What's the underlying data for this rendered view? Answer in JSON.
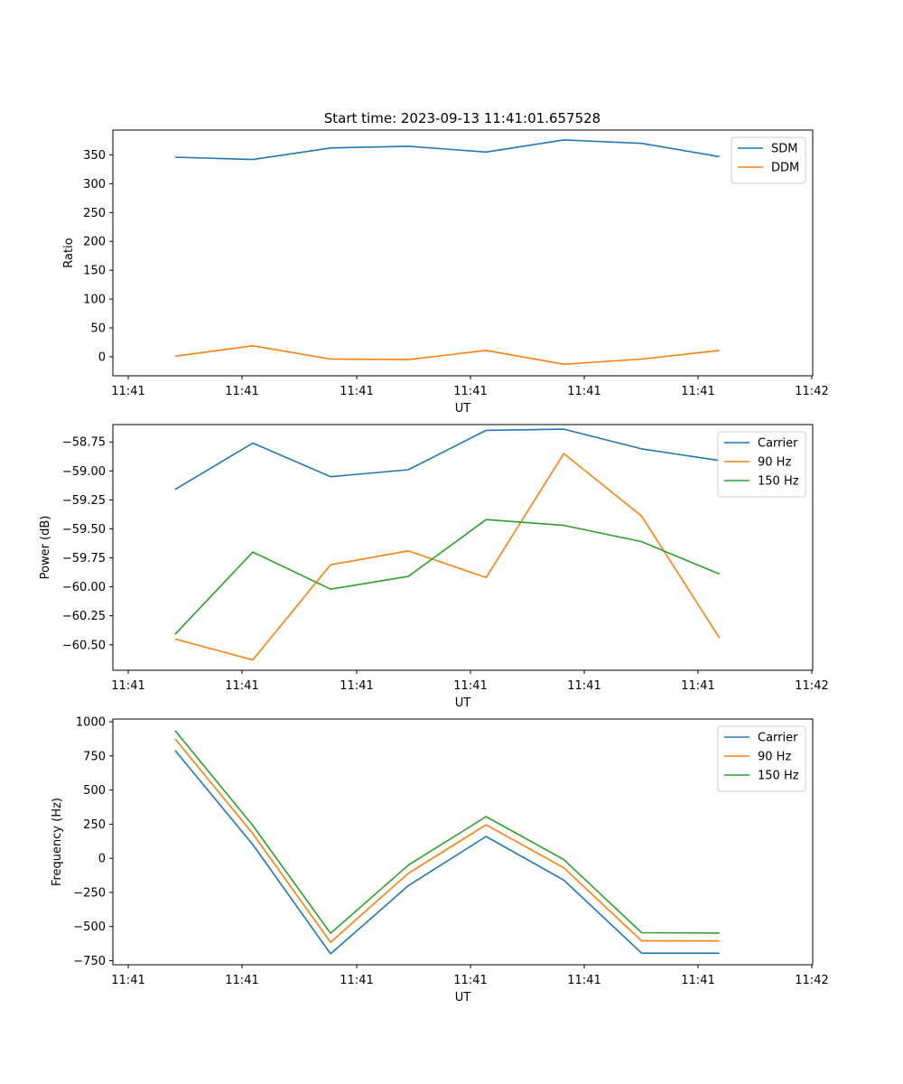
{
  "title": "Start time: 2023-09-13 11:41:01.657528",
  "chart_data": [
    {
      "type": "line",
      "xlabel": "UT",
      "ylabel": "Ratio",
      "x_tick_labels": [
        "11:41",
        "11:41",
        "11:41",
        "11:41",
        "11:41",
        "11:41",
        "11:42"
      ],
      "x": [
        1,
        2,
        3,
        4,
        5,
        6,
        7,
        8
      ],
      "xlim": [
        0.2,
        9.2
      ],
      "ylim": [
        -33,
        393
      ],
      "yticks": [
        0,
        50,
        100,
        150,
        200,
        250,
        300,
        350
      ],
      "ytick_labels": [
        "0",
        "50",
        "100",
        "150",
        "200",
        "250",
        "300",
        "350"
      ],
      "legend_position": "top-right",
      "series": [
        {
          "name": "SDM",
          "color": "#1f77b4",
          "values": [
            346,
            342,
            362,
            365,
            355,
            376,
            370,
            347
          ]
        },
        {
          "name": "DDM",
          "color": "#ff7f0e",
          "values": [
            1,
            19,
            -4,
            -5,
            11,
            -13,
            -4,
            11
          ]
        }
      ]
    },
    {
      "type": "line",
      "xlabel": "UT",
      "ylabel": "Power (dB)",
      "x_tick_labels": [
        "11:41",
        "11:41",
        "11:41",
        "11:41",
        "11:41",
        "11:41",
        "11:42"
      ],
      "x": [
        1,
        2,
        3,
        4,
        5,
        6,
        7,
        8
      ],
      "xlim": [
        0.2,
        9.2
      ],
      "ylim": [
        -60.72,
        -58.6
      ],
      "yticks": [
        -60.5,
        -60.25,
        -60.0,
        -59.75,
        -59.5,
        -59.25,
        -59.0,
        -58.75
      ],
      "ytick_labels": [
        "−60.50",
        "−60.25",
        "−60.00",
        "−59.75",
        "−59.50",
        "−59.25",
        "−59.00",
        "−58.75"
      ],
      "legend_position": "top-right",
      "series": [
        {
          "name": "Carrier",
          "color": "#1f77b4",
          "values": [
            -59.16,
            -58.76,
            -59.05,
            -58.99,
            -58.65,
            -58.64,
            -58.81,
            -58.91
          ]
        },
        {
          "name": "90 Hz",
          "color": "#ff7f0e",
          "values": [
            -60.45,
            -60.63,
            -59.81,
            -59.69,
            -59.92,
            -58.85,
            -59.39,
            -60.44
          ]
        },
        {
          "name": "150 Hz",
          "color": "#2ca02c",
          "values": [
            -60.41,
            -59.7,
            -60.02,
            -59.91,
            -59.42,
            -59.47,
            -59.61,
            -59.89
          ]
        }
      ]
    },
    {
      "type": "line",
      "xlabel": "UT",
      "ylabel": "Frequency (Hz)",
      "x_tick_labels": [
        "11:41",
        "11:41",
        "11:41",
        "11:41",
        "11:41",
        "11:41",
        "11:42"
      ],
      "x": [
        1,
        2,
        3,
        4,
        5,
        6,
        7,
        8
      ],
      "xlim": [
        0.2,
        9.2
      ],
      "ylim": [
        -780,
        1020
      ],
      "yticks": [
        -750,
        -500,
        -250,
        0,
        250,
        500,
        750,
        1000
      ],
      "ytick_labels": [
        "−750",
        "−500",
        "−250",
        "0",
        "250",
        "500",
        "750",
        "1000"
      ],
      "legend_position": "top-right",
      "series": [
        {
          "name": "Carrier",
          "color": "#1f77b4",
          "values": [
            790,
            100,
            -700,
            -200,
            160,
            -160,
            -695,
            -695
          ]
        },
        {
          "name": "90 Hz",
          "color": "#ff7f0e",
          "values": [
            875,
            180,
            -615,
            -110,
            245,
            -70,
            -605,
            -605
          ]
        },
        {
          "name": "150 Hz",
          "color": "#2ca02c",
          "values": [
            935,
            240,
            -550,
            -50,
            305,
            -10,
            -545,
            -548
          ]
        }
      ]
    }
  ]
}
